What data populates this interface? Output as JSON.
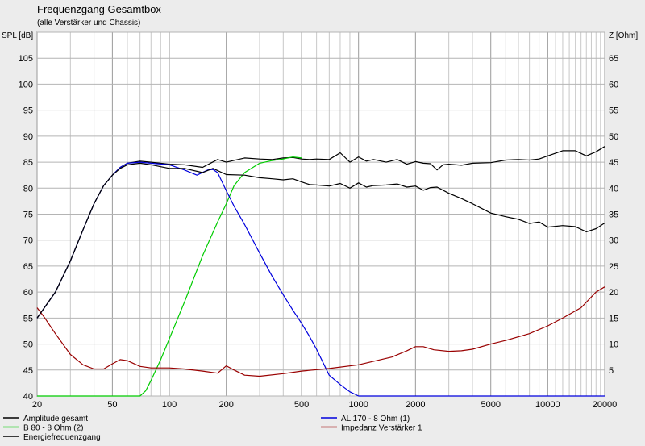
{
  "chart_data": {
    "type": "line",
    "title": "Frequenzgang Gesamtbox",
    "subtitle": "(alle Verstärker und Chassis)",
    "ylabel_left": "SPL [dB]",
    "ylabel_right": "Z [Ohm]",
    "x_scale": "log",
    "xlim": [
      20,
      20000
    ],
    "ylim_left": [
      40,
      110
    ],
    "ylim_right": [
      0,
      70
    ],
    "x_ticks": [
      "20",
      "50",
      "100",
      "200",
      "500",
      "1000",
      "2000",
      "5000",
      "10000",
      "20000"
    ],
    "y_ticks_left": [
      "40",
      "45",
      "50",
      "55",
      "60",
      "65",
      "70",
      "75",
      "80",
      "85",
      "90",
      "95",
      "100",
      "105"
    ],
    "y_ticks_right": [
      "5",
      "10",
      "15",
      "20",
      "25",
      "30",
      "35",
      "40",
      "45",
      "50",
      "55",
      "60",
      "65"
    ],
    "grid": true,
    "legend_position": "bottom",
    "series": [
      {
        "name": "Amplitude gesamt",
        "axis": "left",
        "color": "#000000",
        "x": [
          20,
          25,
          30,
          35,
          40,
          45,
          50,
          55,
          60,
          70,
          80,
          100,
          120,
          150,
          180,
          200,
          250,
          300,
          350,
          400,
          450,
          500,
          550,
          600,
          700,
          800,
          900,
          1000,
          1100,
          1200,
          1400,
          1600,
          1800,
          2000,
          2200,
          2400,
          2600,
          2800,
          3000,
          3500,
          4000,
          5000,
          6000,
          7000,
          8000,
          9000,
          10000,
          12000,
          14000,
          16000,
          18000,
          20000
        ],
        "y": [
          55,
          60,
          66,
          72,
          77,
          80.5,
          82.5,
          84,
          84.8,
          85.2,
          85,
          84.6,
          84.5,
          84,
          85.5,
          85,
          85.8,
          85.6,
          85.5,
          85.8,
          85.9,
          85.6,
          85.5,
          85.6,
          85.5,
          86.8,
          85,
          86,
          85.2,
          85.5,
          85,
          85.5,
          84.6,
          85.1,
          84.8,
          84.7,
          83.5,
          84.5,
          84.6,
          84.4,
          84.8,
          84.9,
          85.4,
          85.5,
          85.4,
          85.6,
          86.2,
          87.2,
          87.2,
          86.2,
          87,
          88
        ]
      },
      {
        "name": "B 80 - 8 Ohm (2)",
        "axis": "left",
        "color": "#00cc00",
        "x": [
          20,
          50,
          70,
          75,
          80,
          90,
          100,
          120,
          150,
          180,
          200,
          220,
          250,
          300,
          350,
          400,
          450,
          500
        ],
        "y": [
          40,
          40,
          40,
          41,
          43,
          47,
          51,
          58,
          67,
          73.5,
          77,
          80.5,
          83,
          84.8,
          85.3,
          85.6,
          86,
          85.8
        ]
      },
      {
        "name": "AL 170 - 8 Ohm (1)",
        "axis": "left",
        "color": "#0000dd",
        "x": [
          20,
          25,
          30,
          35,
          40,
          45,
          50,
          55,
          60,
          70,
          80,
          100,
          120,
          140,
          160,
          170,
          180,
          200,
          220,
          250,
          300,
          350,
          400,
          450,
          500,
          550,
          600,
          700,
          800,
          900,
          1000,
          20000
        ],
        "y": [
          55,
          60,
          66,
          72,
          77,
          80.5,
          82.5,
          84,
          84.8,
          85,
          84.8,
          84.5,
          83.5,
          82.5,
          83.5,
          83.6,
          83,
          79.5,
          76.5,
          73,
          67.5,
          63,
          59.5,
          56.5,
          54,
          51.5,
          49,
          44,
          42.2,
          40.8,
          40,
          40
        ]
      },
      {
        "name": "Impedanz Verstärker 1",
        "axis": "right",
        "color": "#990000",
        "x": [
          20,
          22,
          25,
          30,
          35,
          40,
          45,
          50,
          55,
          60,
          70,
          80,
          100,
          120,
          150,
          180,
          200,
          220,
          250,
          300,
          400,
          500,
          700,
          1000,
          1500,
          1800,
          2000,
          2200,
          2500,
          3000,
          3500,
          4000,
          5000,
          6000,
          8000,
          10000,
          12000,
          15000,
          18000,
          20000
        ],
        "y": [
          17,
          15,
          12,
          8,
          6,
          5.2,
          5.2,
          6.2,
          7,
          6.8,
          5.7,
          5.4,
          5.4,
          5.2,
          4.8,
          4.4,
          5.8,
          5,
          4,
          3.8,
          4.3,
          4.8,
          5.3,
          6,
          7.5,
          8.7,
          9.5,
          9.5,
          8.9,
          8.6,
          8.7,
          9,
          10,
          10.7,
          12,
          13.5,
          15,
          17,
          20,
          21
        ]
      },
      {
        "name": "Energiefrequenzgang",
        "axis": "left",
        "color": "#000000",
        "x": [
          20,
          25,
          30,
          35,
          40,
          45,
          50,
          55,
          60,
          70,
          80,
          100,
          120,
          150,
          170,
          200,
          250,
          300,
          350,
          400,
          450,
          500,
          550,
          600,
          700,
          800,
          900,
          1000,
          1100,
          1200,
          1400,
          1600,
          1800,
          2000,
          2200,
          2400,
          2600,
          3000,
          3500,
          4000,
          5000,
          6000,
          7000,
          8000,
          9000,
          10000,
          12000,
          14000,
          16000,
          18000,
          20000
        ],
        "y": [
          55,
          60,
          66,
          72,
          77,
          80.5,
          82.5,
          83.8,
          84.5,
          84.8,
          84.5,
          83.8,
          83.8,
          83,
          83.8,
          82.6,
          82.5,
          82,
          81.8,
          81.6,
          81.8,
          81.2,
          80.7,
          80.6,
          80.4,
          80.9,
          80,
          81,
          80.2,
          80.5,
          80.6,
          80.8,
          80.2,
          80.4,
          79.6,
          80.1,
          80.2,
          79,
          78,
          77,
          75.2,
          74.5,
          74,
          73.2,
          73.5,
          72.5,
          72.8,
          72.6,
          71.6,
          72.2,
          73.3
        ]
      }
    ]
  }
}
